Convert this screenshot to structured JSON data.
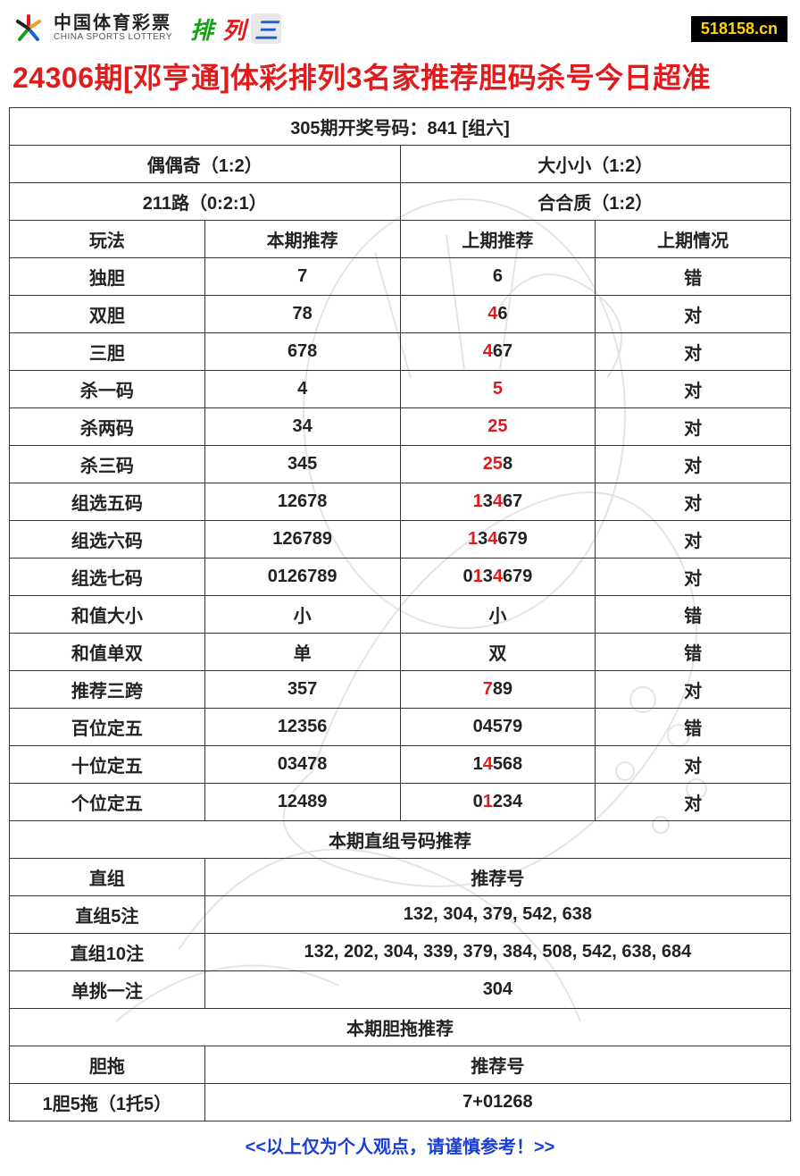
{
  "header": {
    "brand_cn": "中国体育彩票",
    "brand_en": "CHINA SPORTS LOTTERY",
    "product": [
      "排",
      "列",
      "三"
    ],
    "site": "518158.cn"
  },
  "title": "24306期[邓亨通]体彩排列3名家推荐胆码杀号今日超准",
  "colors": {
    "title": "#e11b1b",
    "highlight": "#e11b1b",
    "border": "#333333",
    "text": "#222222",
    "footer": "#1a3fd6",
    "badge_bg": "#000000",
    "badge_fg": "#ffd400"
  },
  "table": {
    "draw_header": "305期开奖号码：841 [组六]",
    "pair_rows": [
      [
        "偶偶奇（1:2）",
        "大小小（1:2）"
      ],
      [
        "211路（0:2:1）",
        "合合质（1:2）"
      ]
    ],
    "columns": [
      "玩法",
      "本期推荐",
      "上期推荐",
      "上期情况"
    ],
    "rows": [
      {
        "play": "独胆",
        "cur": "7",
        "prev": [
          {
            "t": "6"
          }
        ],
        "res": "错",
        "res_hl": false
      },
      {
        "play": "双胆",
        "cur": "78",
        "prev": [
          {
            "t": "4",
            "hl": true
          },
          {
            "t": "6"
          }
        ],
        "res": "对",
        "res_hl": true
      },
      {
        "play": "三胆",
        "cur": "678",
        "prev": [
          {
            "t": "4",
            "hl": true
          },
          {
            "t": "67"
          }
        ],
        "res": "对",
        "res_hl": true
      },
      {
        "play": "杀一码",
        "cur": "4",
        "prev": [
          {
            "t": "5",
            "hl": true
          }
        ],
        "res": "对",
        "res_hl": true
      },
      {
        "play": "杀两码",
        "cur": "34",
        "prev": [
          {
            "t": "25",
            "hl": true
          }
        ],
        "res": "对",
        "res_hl": true
      },
      {
        "play": "杀三码",
        "cur": "345",
        "prev": [
          {
            "t": "25",
            "hl": true
          },
          {
            "t": "8"
          }
        ],
        "res": "对",
        "res_hl": true
      },
      {
        "play": "组选五码",
        "cur": "12678",
        "prev": [
          {
            "t": "1",
            "hl": true
          },
          {
            "t": "3"
          },
          {
            "t": "4",
            "hl": true
          },
          {
            "t": "67"
          }
        ],
        "res": "对",
        "res_hl": true
      },
      {
        "play": "组选六码",
        "cur": "126789",
        "prev": [
          {
            "t": "1",
            "hl": true
          },
          {
            "t": "3"
          },
          {
            "t": "4",
            "hl": true
          },
          {
            "t": "679"
          }
        ],
        "res": "对",
        "res_hl": true
      },
      {
        "play": "组选七码",
        "cur": "0126789",
        "prev": [
          {
            "t": "0"
          },
          {
            "t": "1",
            "hl": true
          },
          {
            "t": "3"
          },
          {
            "t": "4",
            "hl": true
          },
          {
            "t": "679"
          }
        ],
        "res": "对",
        "res_hl": true
      },
      {
        "play": "和值大小",
        "cur": "小",
        "prev": [
          {
            "t": "小"
          }
        ],
        "res": "错",
        "res_hl": false
      },
      {
        "play": "和值单双",
        "cur": "单",
        "prev": [
          {
            "t": "双"
          }
        ],
        "res": "错",
        "res_hl": false
      },
      {
        "play": "推荐三跨",
        "cur": "357",
        "prev": [
          {
            "t": "7",
            "hl": true
          },
          {
            "t": "89"
          }
        ],
        "res": "对",
        "res_hl": true
      },
      {
        "play": "百位定五",
        "cur": "12356",
        "prev": [
          {
            "t": "04579"
          }
        ],
        "res": "错",
        "res_hl": false
      },
      {
        "play": "十位定五",
        "cur": "03478",
        "prev": [
          {
            "t": "1"
          },
          {
            "t": "4",
            "hl": true
          },
          {
            "t": "568"
          }
        ],
        "res": "对",
        "res_hl": true
      },
      {
        "play": "个位定五",
        "cur": "12489",
        "prev": [
          {
            "t": "0"
          },
          {
            "t": "1",
            "hl": true
          },
          {
            "t": "234"
          }
        ],
        "res": "对",
        "res_hl": true
      }
    ],
    "section2_header": "本期直组号码推荐",
    "section2_cols": [
      "直组",
      "推荐号"
    ],
    "section2_rows": [
      {
        "label": "直组5注",
        "val": "132, 304, 379, 542, 638"
      },
      {
        "label": "直组10注",
        "val": "132, 202, 304, 339, 379, 384, 508, 542, 638, 684"
      },
      {
        "label": "单挑一注",
        "val": "304"
      }
    ],
    "section3_header": "本期胆拖推荐",
    "section3_cols": [
      "胆拖",
      "推荐号"
    ],
    "section3_rows": [
      {
        "label": "1胆5拖（1托5）",
        "val": "7+01268"
      }
    ]
  },
  "footer": "<<以上仅为个人观点，请谨慎参考！>>"
}
